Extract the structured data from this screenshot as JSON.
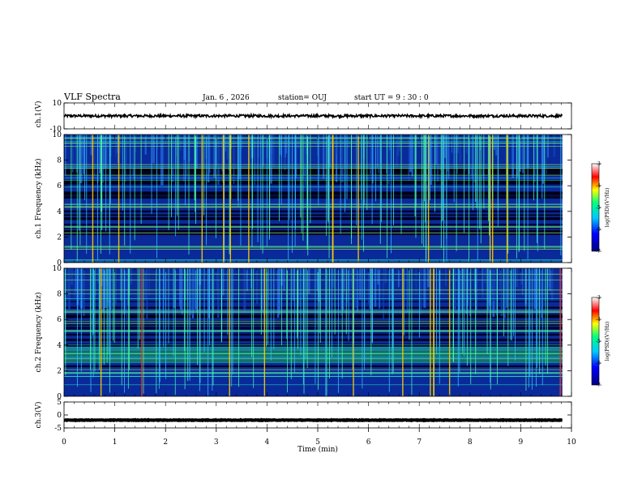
{
  "header": {
    "title": "VLF Spectra",
    "date": "Jan. 6 , 2026",
    "station": "station= OUJ",
    "start": "start UT = 9 : 30 : 0"
  },
  "chart_data": [
    {
      "type": "line",
      "panel": "ch1-waveform",
      "ylabel": "ch.1(V)",
      "xlim": [
        0,
        10
      ],
      "ylim": [
        -10,
        10
      ],
      "yticks": [
        "10",
        "-10"
      ],
      "series": [
        {
          "level": 0,
          "amplitude": 1
        }
      ]
    },
    {
      "type": "heatmap",
      "panel": "ch1-spectrogram",
      "ylabel": "ch.1 Frequency (kHz)",
      "xlim": [
        0,
        10
      ],
      "ylim": [
        0,
        10
      ],
      "yticks": [
        "0",
        "2",
        "4",
        "6",
        "8",
        "10"
      ],
      "colorbar": {
        "label": "log(PSD)(V²/Hz)",
        "range": [
          -7,
          -3
        ],
        "ticks": [
          "-3",
          "-4",
          "-5",
          "-6",
          "-7"
        ]
      }
    },
    {
      "type": "heatmap",
      "panel": "ch2-spectrogram",
      "ylabel": "ch.2 Frequency (kHz)",
      "xlim": [
        0,
        10
      ],
      "ylim": [
        0,
        10
      ],
      "yticks": [
        "0",
        "2",
        "4",
        "6",
        "8",
        "10"
      ],
      "colorbar": {
        "label": "log(PSD)(V²/Hz)",
        "range": [
          -7,
          -3
        ],
        "ticks": [
          "-3",
          "-4",
          "-5",
          "-6",
          "-7"
        ]
      }
    },
    {
      "type": "line",
      "panel": "ch3-waveform",
      "ylabel": "ch.3(V)",
      "xlim": [
        0,
        10
      ],
      "ylim": [
        -5,
        5
      ],
      "yticks": [
        "5",
        "0",
        "-5"
      ],
      "series": [
        {
          "level": -2,
          "amplitude": 0.1
        }
      ]
    }
  ],
  "xaxis": {
    "label": "Time (min)",
    "ticks": [
      "0",
      "1",
      "2",
      "3",
      "4",
      "5",
      "6",
      "7",
      "8",
      "9",
      "10"
    ]
  }
}
